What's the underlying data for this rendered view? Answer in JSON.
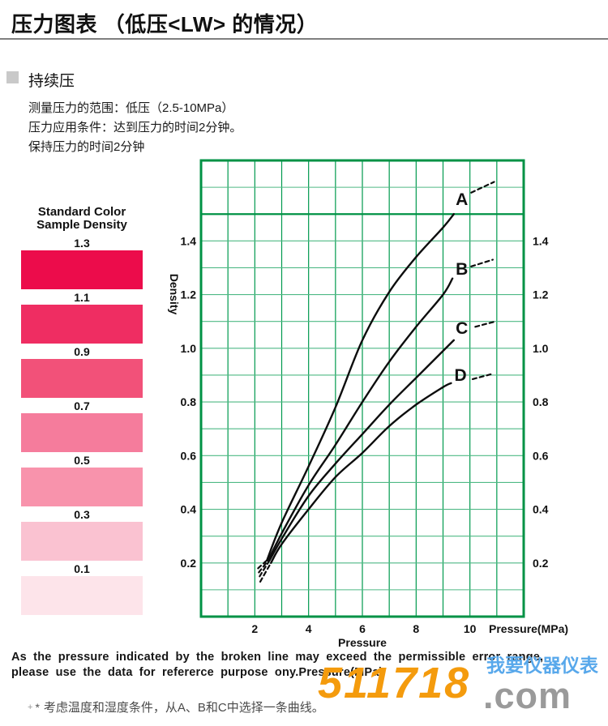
{
  "header": {
    "title": "压力图表 （低压<LW> 的情况）"
  },
  "section": {
    "title": "持续压",
    "lines": [
      "测量压力的范围：低压（2.5-10MPa）",
      "压力应用条件：达到压力的时间2分钟。",
      "保持压力的时间2分钟"
    ]
  },
  "color_samples": {
    "title_line1": "Standard Color",
    "title_line2": "Sample Density",
    "items": [
      {
        "label": "1.3",
        "color": "#ec0c4b"
      },
      {
        "label": "1.1",
        "color": "#ef2d62"
      },
      {
        "label": "0.9",
        "color": "#f25179"
      },
      {
        "label": "0.7",
        "color": "#f57c9c"
      },
      {
        "label": "0.5",
        "color": "#f893ac"
      },
      {
        "label": "0.3",
        "color": "#fac2d1"
      },
      {
        "label": "0.1",
        "color": "#fde4ea"
      }
    ]
  },
  "chart_data": {
    "type": "line",
    "xlabel": "Pressure",
    "xlabel_units": "Pressure(MPa)",
    "ylabel": "Density",
    "xlim": [
      0,
      12
    ],
    "ylim": [
      0,
      1.7
    ],
    "grid": {
      "x_step": 1,
      "y_step": 0.1,
      "emphasis_hline": 1.5,
      "on": true
    },
    "x_ticks": [
      {
        "v": 2,
        "label": "2"
      },
      {
        "v": 4,
        "label": "4"
      },
      {
        "v": 6,
        "label": "6"
      },
      {
        "v": 8,
        "label": "8"
      },
      {
        "v": 10,
        "label": "10"
      }
    ],
    "y_ticks": [
      {
        "v": 0.2,
        "label": "0.2"
      },
      {
        "v": 0.4,
        "label": "0.4"
      },
      {
        "v": 0.6,
        "label": "0.6"
      },
      {
        "v": 0.8,
        "label": "0.8"
      },
      {
        "v": 1.0,
        "label": "1.0"
      },
      {
        "v": 1.2,
        "label": "1.2"
      },
      {
        "v": 1.4,
        "label": "1.4"
      }
    ],
    "y_tick_sides": [
      "left",
      "right"
    ],
    "colors": {
      "border": "#009245",
      "grid_v": "#009a4e",
      "grid_h": "#4fb985",
      "curve": "#0d0d0d"
    },
    "series": [
      {
        "name": "A",
        "label": "A",
        "label_at": [
          9.7,
          1.555
        ],
        "pre_dash": [
          [
            2.12,
            0.18
          ],
          [
            2.45,
            0.21
          ]
        ],
        "solid": [
          [
            2.45,
            0.21
          ],
          [
            3,
            0.35
          ],
          [
            4,
            0.56
          ],
          [
            5,
            0.78
          ],
          [
            6,
            1.03
          ],
          [
            7,
            1.21
          ],
          [
            8,
            1.34
          ],
          [
            9,
            1.45
          ],
          [
            9.4,
            1.5
          ]
        ],
        "post_dash": [
          [
            10.05,
            1.58
          ],
          [
            10.9,
            1.62
          ]
        ]
      },
      {
        "name": "B",
        "label": "B",
        "label_at": [
          9.7,
          1.295
        ],
        "pre_dash": [
          [
            2.15,
            0.165
          ],
          [
            2.5,
            0.21
          ]
        ],
        "solid": [
          [
            2.5,
            0.21
          ],
          [
            3,
            0.31
          ],
          [
            4,
            0.49
          ],
          [
            5,
            0.64
          ],
          [
            6,
            0.8
          ],
          [
            7,
            0.95
          ],
          [
            8,
            1.08
          ],
          [
            9,
            1.2
          ],
          [
            9.35,
            1.26
          ]
        ],
        "post_dash": [
          [
            10.05,
            1.305
          ],
          [
            10.85,
            1.33
          ]
        ]
      },
      {
        "name": "C",
        "label": "C",
        "label_at": [
          9.7,
          1.075
        ],
        "pre_dash": [
          [
            2.18,
            0.15
          ],
          [
            2.55,
            0.21
          ]
        ],
        "solid": [
          [
            2.55,
            0.21
          ],
          [
            3,
            0.29
          ],
          [
            4,
            0.45
          ],
          [
            5,
            0.57
          ],
          [
            6,
            0.68
          ],
          [
            7,
            0.79
          ],
          [
            8,
            0.89
          ],
          [
            9,
            0.99
          ],
          [
            9.4,
            1.03
          ]
        ],
        "post_dash": [
          [
            10.2,
            1.08
          ],
          [
            10.95,
            1.1
          ]
        ]
      },
      {
        "name": "D",
        "label": "D",
        "label_at": [
          9.65,
          0.9
        ],
        "pre_dash": [
          [
            2.2,
            0.13
          ],
          [
            2.6,
            0.2
          ]
        ],
        "solid": [
          [
            2.6,
            0.2
          ],
          [
            3,
            0.27
          ],
          [
            4,
            0.4
          ],
          [
            5,
            0.52
          ],
          [
            6,
            0.61
          ],
          [
            7,
            0.71
          ],
          [
            8,
            0.79
          ],
          [
            9,
            0.855
          ],
          [
            9.3,
            0.87
          ]
        ],
        "post_dash": [
          [
            10.1,
            0.885
          ],
          [
            10.85,
            0.905
          ]
        ]
      }
    ]
  },
  "footer": {
    "line1": "As the pressure indicated by the broken line may exceed the permissible error range,",
    "line2": "please use the data for refererce purpose ony.Pressure(MPa)",
    "note_plus": "+",
    "note_star": "*",
    "note_text": "考虑温度和湿度条件，从A、B和C中选择一条曲线。"
  },
  "watermark": {
    "digits": "511718",
    "suffix": ".com",
    "slogan": "我要仪器仪表",
    "digits_color": "#f49b0d",
    "suffix_color": "#9a9a9a",
    "slogan_color": "#58a8eb"
  }
}
